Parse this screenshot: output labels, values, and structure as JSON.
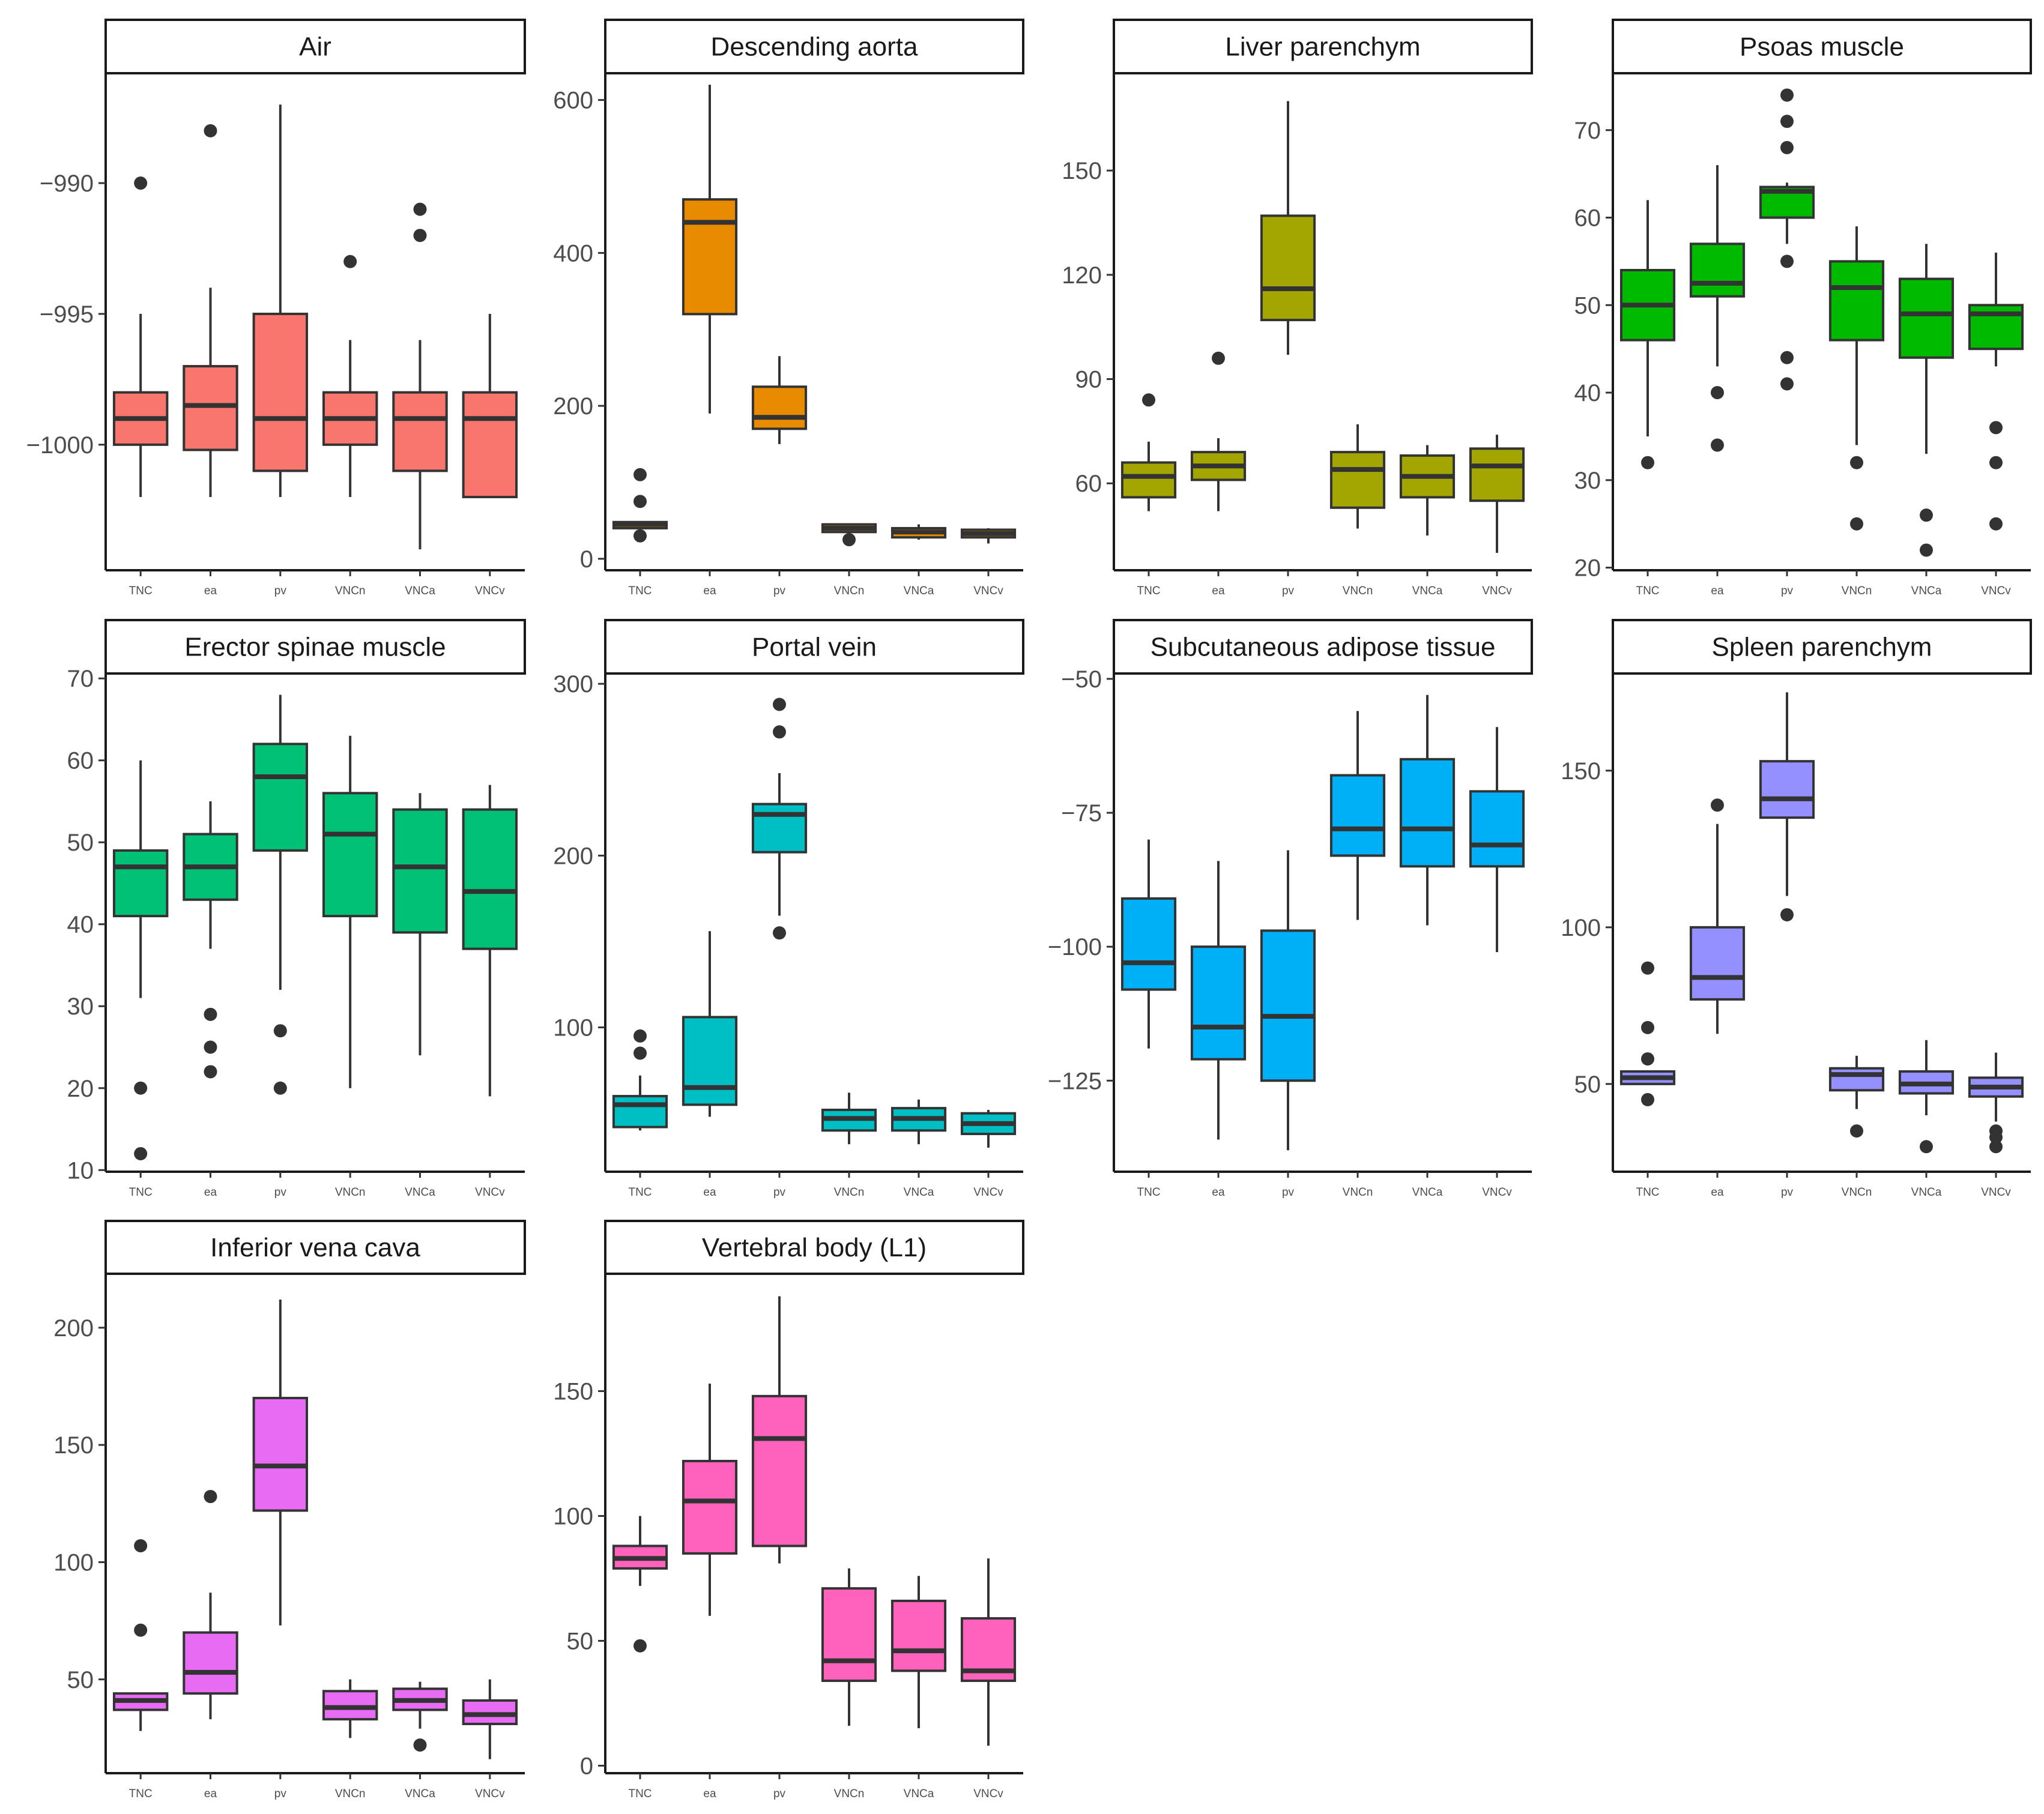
{
  "chart_data": [
    {
      "type": "box",
      "title": "Air",
      "categories": [
        "TNC",
        "ea",
        "pv",
        "VNCn",
        "VNCa",
        "VNCv"
      ],
      "ylim": [
        -1004.8,
        -985.8
      ],
      "yticks": [
        -1000,
        -995,
        -990
      ],
      "ytick_labels": [
        "−1000",
        "−995",
        "−990"
      ],
      "color": "#f8766d",
      "boxes": [
        {
          "whislo": -1002,
          "q1": -1000,
          "med": -999,
          "q3": -998,
          "whishi": -995,
          "fliers": [
            -990
          ]
        },
        {
          "whislo": -1002,
          "q1": -1000.2,
          "med": -998.5,
          "q3": -997,
          "whishi": -994,
          "fliers": [
            -988
          ]
        },
        {
          "whislo": -1002,
          "q1": -1001,
          "med": -999,
          "q3": -995,
          "whishi": -987,
          "fliers": []
        },
        {
          "whislo": -1002,
          "q1": -1000,
          "med": -999,
          "q3": -998,
          "whishi": -996,
          "fliers": [
            -993
          ]
        },
        {
          "whislo": -1004,
          "q1": -1001,
          "med": -999,
          "q3": -998,
          "whishi": -996,
          "fliers": [
            -991,
            -992
          ]
        },
        {
          "whislo": -1002,
          "q1": -1002,
          "med": -999,
          "q3": -998,
          "whishi": -995,
          "fliers": []
        }
      ]
    },
    {
      "type": "box",
      "title": "Descending aorta",
      "categories": [
        "TNC",
        "ea",
        "pv",
        "VNCn",
        "VNCa",
        "VNCv"
      ],
      "ylim": [
        -15,
        635
      ],
      "yticks": [
        0,
        200,
        400,
        600
      ],
      "ytick_labels": [
        "0",
        "200",
        "400",
        "600"
      ],
      "color": "#e98b00",
      "boxes": [
        {
          "whislo": 40,
          "q1": 40,
          "med": 45,
          "q3": 48,
          "whishi": 48,
          "fliers": [
            110,
            75,
            30
          ]
        },
        {
          "whislo": 190,
          "q1": 320,
          "med": 440,
          "q3": 470,
          "whishi": 620,
          "fliers": []
        },
        {
          "whislo": 150,
          "q1": 170,
          "med": 185,
          "q3": 225,
          "whishi": 265,
          "fliers": []
        },
        {
          "whislo": 35,
          "q1": 35,
          "med": 40,
          "q3": 45,
          "whishi": 45,
          "fliers": [
            25
          ]
        },
        {
          "whislo": 25,
          "q1": 28,
          "med": 35,
          "q3": 40,
          "whishi": 45,
          "fliers": []
        },
        {
          "whislo": 20,
          "q1": 28,
          "med": 33,
          "q3": 38,
          "whishi": 40,
          "fliers": []
        }
      ]
    },
    {
      "type": "box",
      "title": "Liver parenchym",
      "categories": [
        "TNC",
        "ea",
        "pv",
        "VNCn",
        "VNCa",
        "VNCv"
      ],
      "ylim": [
        35,
        178
      ],
      "yticks": [
        60,
        90,
        120,
        150
      ],
      "ytick_labels": [
        "60",
        "90",
        "120",
        "150"
      ],
      "color": "#a3a500",
      "boxes": [
        {
          "whislo": 52,
          "q1": 56,
          "med": 62,
          "q3": 66,
          "whishi": 72,
          "fliers": [
            84
          ]
        },
        {
          "whislo": 52,
          "q1": 61,
          "med": 65,
          "q3": 69,
          "whishi": 73,
          "fliers": [
            96
          ]
        },
        {
          "whislo": 97,
          "q1": 107,
          "med": 116,
          "q3": 137,
          "whishi": 170,
          "fliers": []
        },
        {
          "whislo": 47,
          "q1": 53,
          "med": 64,
          "q3": 69,
          "whishi": 77,
          "fliers": []
        },
        {
          "whislo": 45,
          "q1": 56,
          "med": 62,
          "q3": 68,
          "whishi": 71,
          "fliers": []
        },
        {
          "whislo": 40,
          "q1": 55,
          "med": 65,
          "q3": 70,
          "whishi": 74,
          "fliers": []
        }
      ]
    },
    {
      "type": "box",
      "title": "Psoas muscle",
      "categories": [
        "TNC",
        "ea",
        "pv",
        "VNCn",
        "VNCa",
        "VNCv"
      ],
      "ylim": [
        19.7,
        76.5
      ],
      "yticks": [
        20,
        30,
        40,
        50,
        60,
        70
      ],
      "ytick_labels": [
        "20",
        "30",
        "40",
        "50",
        "60",
        "70"
      ],
      "color": "#00ba00",
      "boxes": [
        {
          "whislo": 35,
          "q1": 46,
          "med": 50,
          "q3": 54,
          "whishi": 62,
          "fliers": [
            32
          ]
        },
        {
          "whislo": 43,
          "q1": 51,
          "med": 52.5,
          "q3": 57,
          "whishi": 66,
          "fliers": [
            40,
            34
          ]
        },
        {
          "whislo": 57,
          "q1": 60,
          "med": 63,
          "q3": 63.5,
          "whishi": 64,
          "fliers": [
            74,
            71,
            68,
            55,
            44,
            41
          ]
        },
        {
          "whislo": 34,
          "q1": 46,
          "med": 52,
          "q3": 55,
          "whishi": 59,
          "fliers": [
            32,
            25
          ]
        },
        {
          "whislo": 33,
          "q1": 44,
          "med": 49,
          "q3": 53,
          "whishi": 57,
          "fliers": [
            26,
            22
          ]
        },
        {
          "whislo": 43,
          "q1": 45,
          "med": 49,
          "q3": 50,
          "whishi": 56,
          "fliers": [
            36,
            32,
            25
          ]
        }
      ]
    },
    {
      "type": "box",
      "title": "Erector spinae muscle",
      "categories": [
        "TNC",
        "ea",
        "pv",
        "VNCn",
        "VNCa",
        "VNCv"
      ],
      "ylim": [
        9.8,
        70.6
      ],
      "yticks": [
        10,
        20,
        30,
        40,
        50,
        60,
        70
      ],
      "ytick_labels": [
        "10",
        "20",
        "30",
        "40",
        "50",
        "60",
        "70"
      ],
      "color": "#00c176",
      "boxes": [
        {
          "whislo": 31,
          "q1": 41,
          "med": 47,
          "q3": 49,
          "whishi": 60,
          "fliers": [
            20,
            12
          ]
        },
        {
          "whislo": 37,
          "q1": 43,
          "med": 47,
          "q3": 51,
          "whishi": 55,
          "fliers": [
            29,
            25,
            22
          ]
        },
        {
          "whislo": 32,
          "q1": 49,
          "med": 58,
          "q3": 62,
          "whishi": 68,
          "fliers": [
            27,
            20
          ]
        },
        {
          "whislo": 20,
          "q1": 41,
          "med": 51,
          "q3": 56,
          "whishi": 63,
          "fliers": []
        },
        {
          "whislo": 24,
          "q1": 39,
          "med": 47,
          "q3": 54,
          "whishi": 56,
          "fliers": []
        },
        {
          "whislo": 19,
          "q1": 37,
          "med": 44,
          "q3": 54,
          "whishi": 57,
          "fliers": []
        }
      ]
    },
    {
      "type": "box",
      "title": "Portal vein",
      "categories": [
        "TNC",
        "ea",
        "pv",
        "VNCn",
        "VNCa",
        "VNCv"
      ],
      "ylim": [
        16,
        306
      ],
      "yticks": [
        100,
        200,
        300
      ],
      "ytick_labels": [
        "100",
        "200",
        "300"
      ],
      "color": "#00bfc4",
      "boxes": [
        {
          "whislo": 40,
          "q1": 42,
          "med": 55,
          "q3": 60,
          "whishi": 72,
          "fliers": [
            95,
            85
          ]
        },
        {
          "whislo": 48,
          "q1": 55,
          "med": 65,
          "q3": 106,
          "whishi": 156,
          "fliers": []
        },
        {
          "whislo": 165,
          "q1": 202,
          "med": 224,
          "q3": 230,
          "whishi": 248,
          "fliers": [
            288,
            272,
            155
          ]
        },
        {
          "whislo": 32,
          "q1": 40,
          "med": 47,
          "q3": 52,
          "whishi": 62,
          "fliers": []
        },
        {
          "whislo": 32,
          "q1": 40,
          "med": 47,
          "q3": 53,
          "whishi": 58,
          "fliers": []
        },
        {
          "whislo": 30,
          "q1": 38,
          "med": 44,
          "q3": 50,
          "whishi": 52,
          "fliers": []
        }
      ]
    },
    {
      "type": "box",
      "title": "Subcutaneous adipose tissue",
      "categories": [
        "TNC",
        "ea",
        "pv",
        "VNCn",
        "VNCa",
        "VNCv"
      ],
      "ylim": [
        -142,
        -49
      ],
      "yticks": [
        -125,
        -100,
        -75,
        -50
      ],
      "ytick_labels": [
        "−125",
        "−100",
        "−75",
        "−50"
      ],
      "color": "#00b0f6",
      "boxes": [
        {
          "whislo": -119,
          "q1": -108,
          "med": -103,
          "q3": -91,
          "whishi": -80,
          "fliers": []
        },
        {
          "whislo": -136,
          "q1": -121,
          "med": -115,
          "q3": -100,
          "whishi": -84,
          "fliers": []
        },
        {
          "whislo": -138,
          "q1": -125,
          "med": -113,
          "q3": -97,
          "whishi": -82,
          "fliers": []
        },
        {
          "whislo": -95,
          "q1": -83,
          "med": -78,
          "q3": -68,
          "whishi": -56,
          "fliers": []
        },
        {
          "whislo": -96,
          "q1": -85,
          "med": -78,
          "q3": -65,
          "whishi": -53,
          "fliers": []
        },
        {
          "whislo": -101,
          "q1": -85,
          "med": -81,
          "q3": -71,
          "whishi": -59,
          "fliers": []
        }
      ]
    },
    {
      "type": "box",
      "title": "Spleen parenchym",
      "categories": [
        "TNC",
        "ea",
        "pv",
        "VNCn",
        "VNCa",
        "VNCv"
      ],
      "ylim": [
        22,
        181
      ],
      "yticks": [
        50,
        100,
        150
      ],
      "ytick_labels": [
        "50",
        "100",
        "150"
      ],
      "color": "#9590ff",
      "boxes": [
        {
          "whislo": 50,
          "q1": 50,
          "med": 52,
          "q3": 54,
          "whishi": 54,
          "fliers": [
            87,
            68,
            58,
            45
          ]
        },
        {
          "whislo": 66,
          "q1": 77,
          "med": 84,
          "q3": 100,
          "whishi": 133,
          "fliers": [
            139
          ]
        },
        {
          "whislo": 110,
          "q1": 135,
          "med": 141,
          "q3": 153,
          "whishi": 175,
          "fliers": [
            104
          ]
        },
        {
          "whislo": 42,
          "q1": 48,
          "med": 53,
          "q3": 55,
          "whishi": 59,
          "fliers": [
            35
          ]
        },
        {
          "whislo": 40,
          "q1": 47,
          "med": 50,
          "q3": 54,
          "whishi": 64,
          "fliers": [
            30
          ]
        },
        {
          "whislo": 38,
          "q1": 46,
          "med": 49,
          "q3": 52,
          "whishi": 60,
          "fliers": [
            35,
            33,
            30
          ]
        }
      ]
    },
    {
      "type": "box",
      "title": "Inferior vena cava",
      "categories": [
        "TNC",
        "ea",
        "pv",
        "VNCn",
        "VNCa",
        "VNCv"
      ],
      "ylim": [
        10,
        223
      ],
      "yticks": [
        50,
        100,
        150,
        200
      ],
      "ytick_labels": [
        "50",
        "100",
        "150",
        "200"
      ],
      "color": "#e76bf3",
      "boxes": [
        {
          "whislo": 28,
          "q1": 37,
          "med": 41,
          "q3": 44,
          "whishi": 44,
          "fliers": [
            107,
            71
          ]
        },
        {
          "whislo": 33,
          "q1": 44,
          "med": 53,
          "q3": 70,
          "whishi": 87,
          "fliers": [
            128
          ]
        },
        {
          "whislo": 73,
          "q1": 122,
          "med": 141,
          "q3": 170,
          "whishi": 212,
          "fliers": []
        },
        {
          "whislo": 25,
          "q1": 33,
          "med": 38,
          "q3": 45,
          "whishi": 50,
          "fliers": []
        },
        {
          "whislo": 29,
          "q1": 37,
          "med": 41,
          "q3": 46,
          "whishi": 49,
          "fliers": [
            22
          ]
        },
        {
          "whislo": 16,
          "q1": 31,
          "med": 35,
          "q3": 41,
          "whishi": 50,
          "fliers": []
        }
      ]
    },
    {
      "type": "box",
      "title": "Vertebral body (L1)",
      "categories": [
        "TNC",
        "ea",
        "pv",
        "VNCn",
        "VNCa",
        "VNCv"
      ],
      "ylim": [
        -3,
        197
      ],
      "yticks": [
        0,
        50,
        100,
        150
      ],
      "ytick_labels": [
        "0",
        "50",
        "100",
        "150"
      ],
      "color": "#ff62bc",
      "boxes": [
        {
          "whislo": 72,
          "q1": 79,
          "med": 83,
          "q3": 88,
          "whishi": 100,
          "fliers": [
            48
          ]
        },
        {
          "whislo": 60,
          "q1": 85,
          "med": 106,
          "q3": 122,
          "whishi": 153,
          "fliers": []
        },
        {
          "whislo": 81,
          "q1": 88,
          "med": 131,
          "q3": 148,
          "whishi": 188,
          "fliers": []
        },
        {
          "whislo": 16,
          "q1": 34,
          "med": 42,
          "q3": 71,
          "whishi": 79,
          "fliers": []
        },
        {
          "whislo": 15,
          "q1": 38,
          "med": 46,
          "q3": 66,
          "whishi": 76,
          "fliers": []
        },
        {
          "whislo": 8,
          "q1": 34,
          "med": 38,
          "q3": 59,
          "whishi": 83,
          "fliers": []
        }
      ]
    }
  ]
}
